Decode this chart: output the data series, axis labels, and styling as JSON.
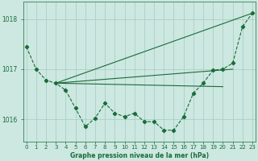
{
  "bg_color": "#cce8e0",
  "grid_color": "#aad0c8",
  "line_color": "#1a6b3a",
  "title": "Graphe pression niveau de la mer (hPa)",
  "xlim": [
    -0.3,
    23.3
  ],
  "ylim": [
    1015.55,
    1018.35
  ],
  "yticks": [
    1016,
    1017,
    1018
  ],
  "xticks": [
    0,
    1,
    2,
    3,
    4,
    5,
    6,
    7,
    8,
    9,
    10,
    11,
    12,
    13,
    14,
    15,
    16,
    17,
    18,
    19,
    20,
    21,
    22,
    23
  ],
  "xticklabels": [
    "0",
    "1",
    "2",
    "3",
    "4",
    "5",
    "6",
    "7",
    "8",
    "9",
    "10",
    "11",
    "12",
    "13",
    "14",
    "15",
    "16",
    "17",
    "18",
    "19",
    "20",
    "21",
    "22",
    "23"
  ],
  "main_x": [
    0,
    1,
    2,
    3,
    4,
    5,
    6,
    7,
    8,
    9,
    10,
    11,
    12,
    13,
    14,
    15,
    16,
    17,
    18,
    19,
    20,
    21,
    22,
    23
  ],
  "main_y": [
    1017.45,
    1017.0,
    1016.78,
    1016.72,
    1016.58,
    1016.22,
    1015.85,
    1016.02,
    1016.32,
    1016.12,
    1016.05,
    1016.12,
    1015.95,
    1015.95,
    1015.78,
    1015.78,
    1016.05,
    1016.52,
    1016.72,
    1016.98,
    1017.0,
    1017.12,
    1017.85,
    1018.12
  ],
  "line1_x": [
    3,
    23
  ],
  "line1_y": [
    1016.72,
    1018.12
  ],
  "line2_x": [
    3,
    21
  ],
  "line2_y": [
    1016.72,
    1017.0
  ],
  "line3_x": [
    3,
    20
  ],
  "line3_y": [
    1016.72,
    1016.65
  ],
  "title_fontsize": 5.5,
  "tick_fontsize": 5.0,
  "ytick_fontsize": 5.5
}
